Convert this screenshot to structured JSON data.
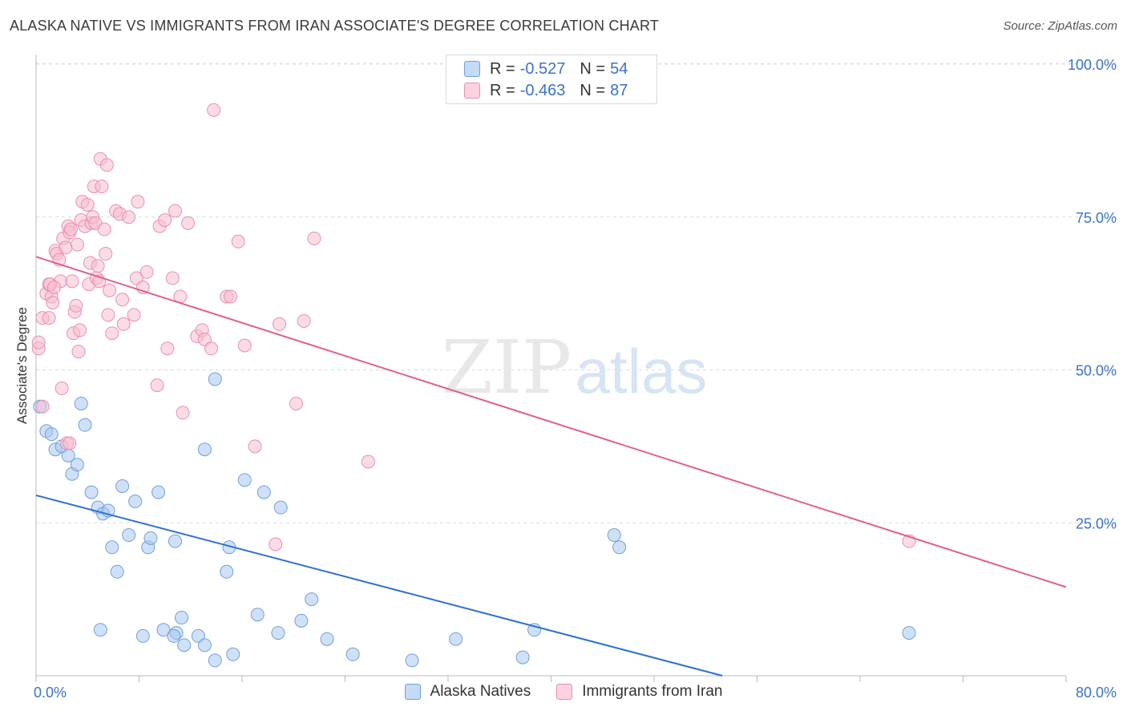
{
  "header": {
    "title": "ALASKA NATIVE VS IMMIGRANTS FROM IRAN ASSOCIATE'S DEGREE CORRELATION CHART",
    "source": "Source: ZipAtlas.com"
  },
  "watermark": {
    "zip": "ZIP",
    "atlas": "atlas"
  },
  "legend": {
    "r_label": "R = ",
    "n_label": "N = ",
    "rows": [
      {
        "r": "-0.527",
        "n": "54",
        "color": "#a9c8f0",
        "stroke": "#6fa0dc"
      },
      {
        "r": "-0.463",
        "n": "87",
        "color": "#f7bdd0",
        "stroke": "#e890ae"
      }
    ]
  },
  "bottom_legend": [
    "Alaska Natives",
    "Immigrants from Iran"
  ],
  "chart_data": {
    "type": "scatter",
    "xlabel": "",
    "ylabel": "Associate's Degree",
    "xlim": [
      0,
      80
    ],
    "ylim": [
      0,
      100
    ],
    "x_tick_labels": [
      "0.0%",
      "80.0%"
    ],
    "y_ticks": [
      25,
      50,
      75,
      100
    ],
    "y_tick_labels": [
      "25.0%",
      "50.0%",
      "75.0%",
      "100.0%"
    ],
    "grid": "horizontal-dashed",
    "series": [
      {
        "name": "Alaska Natives",
        "color": "#a9c8f0",
        "stroke": "#6fa0dc",
        "trend_color": "#2c6fd1",
        "trend": [
          [
            0,
            29.5
          ],
          [
            53.3,
            0
          ]
        ],
        "points": [
          [
            0.3,
            44
          ],
          [
            0.8,
            40
          ],
          [
            1.2,
            39.5
          ],
          [
            1.5,
            37
          ],
          [
            2.0,
            37.5
          ],
          [
            2.5,
            36
          ],
          [
            2.8,
            33
          ],
          [
            3.2,
            34.5
          ],
          [
            3.5,
            44.5
          ],
          [
            3.8,
            41
          ],
          [
            4.3,
            30
          ],
          [
            4.8,
            27.5
          ],
          [
            5.2,
            26.5
          ],
          [
            5.6,
            27
          ],
          [
            5.9,
            21
          ],
          [
            6.3,
            17
          ],
          [
            6.7,
            31
          ],
          [
            7.2,
            23
          ],
          [
            7.7,
            28.5
          ],
          [
            8.7,
            21
          ],
          [
            8.9,
            22.5
          ],
          [
            9.5,
            30
          ],
          [
            10.8,
            22
          ],
          [
            13.1,
            37
          ],
          [
            13.9,
            48.5
          ],
          [
            14.8,
            17
          ],
          [
            15.0,
            21
          ],
          [
            16.2,
            32
          ],
          [
            17.7,
            30
          ],
          [
            19.0,
            27.5
          ],
          [
            10.9,
            7
          ],
          [
            11.3,
            9.5
          ],
          [
            12.6,
            6.5
          ],
          [
            13.1,
            5
          ],
          [
            13.9,
            2.5
          ],
          [
            15.3,
            3.5
          ],
          [
            17.2,
            10
          ],
          [
            18.8,
            7
          ],
          [
            20.6,
            9
          ],
          [
            21.4,
            12.5
          ],
          [
            22.6,
            6
          ],
          [
            24.6,
            3.5
          ],
          [
            29.2,
            2.5
          ],
          [
            32.6,
            6
          ],
          [
            37.8,
            3
          ],
          [
            38.7,
            7.5
          ],
          [
            44.9,
            23
          ],
          [
            45.3,
            21
          ],
          [
            67.8,
            7
          ],
          [
            5.0,
            7.5
          ],
          [
            8.3,
            6.5
          ],
          [
            9.9,
            7.5
          ],
          [
            10.7,
            6.5
          ],
          [
            11.5,
            5
          ]
        ]
      },
      {
        "name": "Immigrants from Iran",
        "color": "#f7bdd0",
        "stroke": "#e890ae",
        "trend_color": "#e0608a",
        "trend": [
          [
            0,
            68.5
          ],
          [
            80,
            14.5
          ]
        ],
        "points": [
          [
            0.2,
            53.5
          ],
          [
            0.2,
            54.5
          ],
          [
            0.5,
            58.5
          ],
          [
            0.8,
            62.5
          ],
          [
            1.0,
            64
          ],
          [
            1.2,
            62
          ],
          [
            1.3,
            61
          ],
          [
            1.5,
            69.5
          ],
          [
            1.6,
            69
          ],
          [
            1.8,
            68
          ],
          [
            1.9,
            64.5
          ],
          [
            2.0,
            47
          ],
          [
            2.1,
            71.5
          ],
          [
            2.3,
            70
          ],
          [
            2.5,
            73.5
          ],
          [
            2.6,
            72.5
          ],
          [
            2.7,
            73
          ],
          [
            2.8,
            64.5
          ],
          [
            2.9,
            56
          ],
          [
            3.0,
            59.5
          ],
          [
            3.1,
            60.5
          ],
          [
            3.2,
            70.5
          ],
          [
            3.3,
            53
          ],
          [
            3.4,
            56.5
          ],
          [
            3.5,
            74.5
          ],
          [
            3.6,
            77.5
          ],
          [
            3.8,
            73.5
          ],
          [
            4.0,
            77
          ],
          [
            4.1,
            64
          ],
          [
            4.2,
            67.5
          ],
          [
            4.3,
            74
          ],
          [
            4.4,
            75
          ],
          [
            4.5,
            80
          ],
          [
            4.6,
            74
          ],
          [
            4.7,
            65
          ],
          [
            4.8,
            67
          ],
          [
            4.9,
            64.5
          ],
          [
            5.0,
            84.5
          ],
          [
            5.1,
            80
          ],
          [
            5.3,
            73
          ],
          [
            5.4,
            69
          ],
          [
            5.5,
            83.5
          ],
          [
            5.6,
            59
          ],
          [
            5.7,
            63
          ],
          [
            5.9,
            56
          ],
          [
            6.2,
            76
          ],
          [
            6.5,
            75.5
          ],
          [
            6.7,
            61.5
          ],
          [
            6.8,
            57.5
          ],
          [
            7.2,
            75
          ],
          [
            7.6,
            59
          ],
          [
            7.8,
            65
          ],
          [
            7.9,
            77.5
          ],
          [
            8.3,
            63.5
          ],
          [
            8.6,
            66
          ],
          [
            9.4,
            47.5
          ],
          [
            9.6,
            73.5
          ],
          [
            10.0,
            74.5
          ],
          [
            10.2,
            53.5
          ],
          [
            10.6,
            65
          ],
          [
            10.8,
            76
          ],
          [
            11.2,
            62
          ],
          [
            11.4,
            43
          ],
          [
            11.8,
            74
          ],
          [
            12.5,
            55.5
          ],
          [
            12.9,
            56.5
          ],
          [
            13.1,
            55
          ],
          [
            13.6,
            53.5
          ],
          [
            13.8,
            92.5
          ],
          [
            14.8,
            62
          ],
          [
            15.1,
            62
          ],
          [
            15.7,
            71
          ],
          [
            16.2,
            54
          ],
          [
            17.0,
            37.5
          ],
          [
            18.6,
            21.5
          ],
          [
            18.9,
            57.5
          ],
          [
            20.2,
            44.5
          ],
          [
            20.8,
            58
          ],
          [
            21.6,
            71.5
          ],
          [
            25.8,
            35
          ],
          [
            67.8,
            22
          ],
          [
            1.0,
            58.5
          ],
          [
            1.1,
            64
          ],
          [
            2.4,
            38
          ],
          [
            1.4,
            63.5
          ],
          [
            0.5,
            44
          ],
          [
            2.6,
            38
          ]
        ]
      }
    ]
  }
}
